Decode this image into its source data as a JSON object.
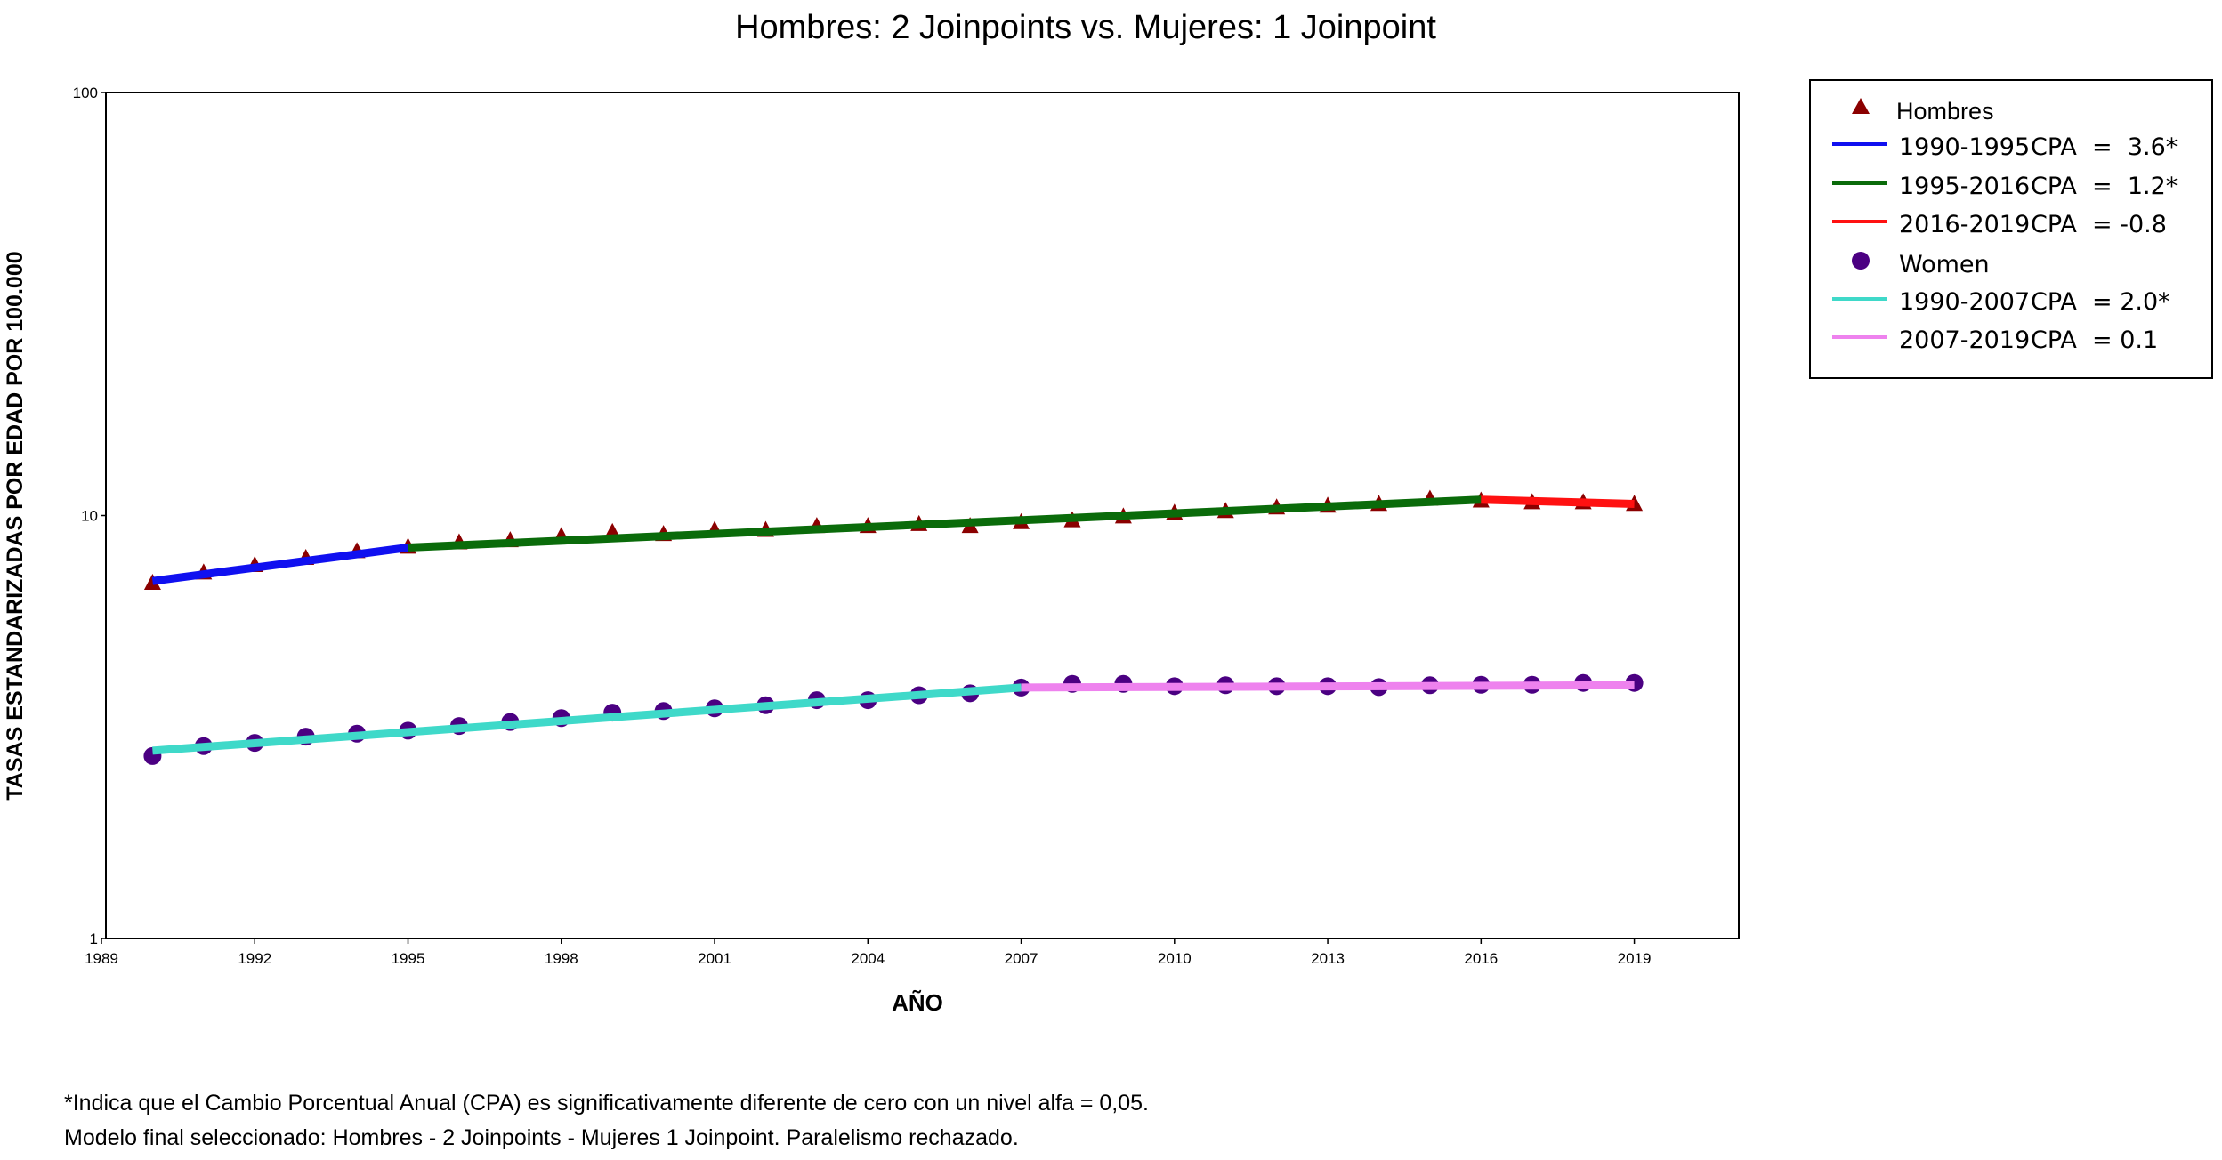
{
  "chart_data": {
    "type": "line",
    "title": "Hombres: 2 Joinpoints vs. Mujeres: 1 Joinpoint",
    "xlabel": "AÑO",
    "ylabel": "TASAS ESTANDARIZADAS POR EDAD POR 100.000",
    "xlim": [
      1989,
      2020
    ],
    "ylim": [
      1,
      100
    ],
    "yscale": "log",
    "x_ticks": [
      "1989",
      "1992",
      "1995",
      "1998",
      "2001",
      "2004",
      "2007",
      "2010",
      "2013",
      "2016",
      "2019"
    ],
    "y_ticks": [
      "1",
      "10",
      "100"
    ],
    "grid": false,
    "legend_position": "right",
    "series": [
      {
        "name": "Hombres",
        "marker": "triangle",
        "color": "#8b0000",
        "x": [
          1990,
          1991,
          1992,
          1993,
          1994,
          1995,
          1996,
          1997,
          1998,
          1999,
          2000,
          2001,
          2002,
          2003,
          2004,
          2005,
          2006,
          2007,
          2008,
          2009,
          2010,
          2011,
          2012,
          2013,
          2014,
          2015,
          2016,
          2017,
          2018,
          2019
        ],
        "y": [
          6.9,
          7.3,
          7.6,
          7.9,
          8.2,
          8.4,
          8.6,
          8.7,
          8.9,
          9.1,
          9.0,
          9.2,
          9.2,
          9.4,
          9.4,
          9.5,
          9.4,
          9.6,
          9.7,
          9.9,
          10.1,
          10.2,
          10.4,
          10.5,
          10.6,
          10.9,
          10.8,
          10.7,
          10.7,
          10.6
        ]
      },
      {
        "name": "Women",
        "marker": "circle",
        "color": "#4b0082",
        "x": [
          1990,
          1991,
          1992,
          1993,
          1994,
          1995,
          1996,
          1997,
          1998,
          1999,
          2000,
          2001,
          2002,
          2003,
          2004,
          2005,
          2006,
          2007,
          2008,
          2009,
          2010,
          2011,
          2012,
          2013,
          2014,
          2015,
          2016,
          2017,
          2018,
          2019
        ],
        "y": [
          2.7,
          2.85,
          2.9,
          3.0,
          3.05,
          3.1,
          3.18,
          3.25,
          3.32,
          3.42,
          3.45,
          3.5,
          3.56,
          3.66,
          3.66,
          3.76,
          3.8,
          3.92,
          4.0,
          4.0,
          3.95,
          3.97,
          3.95,
          3.95,
          3.93,
          3.97,
          3.98,
          3.98,
          4.02,
          4.02
        ]
      }
    ],
    "segments": [
      {
        "label": "1990-1995",
        "cpa": "CPA  =  3.6*",
        "color": "#1010f0",
        "x": [
          1990,
          1995
        ],
        "y": [
          7.0,
          8.4
        ]
      },
      {
        "label": "1995-2016",
        "cpa": "CPA  =  1.2*",
        "color": "#0a6b0a",
        "x": [
          1995,
          2016
        ],
        "y": [
          8.4,
          10.9
        ]
      },
      {
        "label": "2016-2019",
        "cpa": "CPA  = -0.8",
        "color": "#ff1111",
        "x": [
          2016,
          2019
        ],
        "y": [
          10.9,
          10.65
        ]
      },
      {
        "label": "1990-2007",
        "cpa": "CPA  = 2.0*",
        "color": "#3fd9c9",
        "x": [
          1990,
          2007
        ],
        "y": [
          2.78,
          3.92
        ]
      },
      {
        "label": "2007-2019",
        "cpa": "CPA  = 0.1",
        "color": "#ee82ee",
        "x": [
          2007,
          2019
        ],
        "y": [
          3.92,
          3.97
        ]
      }
    ]
  },
  "footnotes": {
    "line1": "*Indica que el Cambio Porcentual Anual (CPA) es significativamente diferente de cero con un nivel alfa = 0,05.",
    "line2": "Modelo final seleccionado: Hombres - 2 Joinpoints - Mujeres 1 Joinpoint. Paralelismo rechazado."
  }
}
